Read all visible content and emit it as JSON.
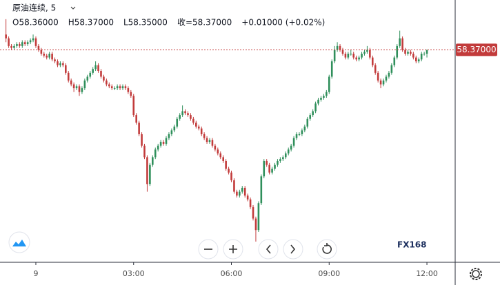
{
  "chart_data": {
    "type": "candlestick",
    "title": "原油连续, 5",
    "info": [
      "O58.36000",
      "H58.37000",
      "L58.35000",
      "收=58.37000",
      "+0.01000 (+0.02%)"
    ],
    "price_tag": "58.37000",
    "logo": "FX168",
    "up_color": "#2f8f5b",
    "down_color": "#c23b3b",
    "xlim": [
      -66,
      772
    ],
    "ylim": [
      57.816,
      58.5
    ],
    "xticks": [
      {
        "value": 0,
        "label": "9"
      },
      {
        "value": 180,
        "label": "03:00"
      },
      {
        "value": 360,
        "label": "06:00"
      },
      {
        "value": 540,
        "label": "09:00"
      },
      {
        "value": 720,
        "label": "12:00"
      }
    ],
    "x": [
      -55,
      -50,
      -45,
      -40,
      -35,
      -30,
      -25,
      -20,
      -15,
      -10,
      -5,
      0,
      5,
      10,
      15,
      20,
      25,
      30,
      35,
      40,
      45,
      50,
      55,
      60,
      65,
      70,
      75,
      80,
      85,
      90,
      95,
      100,
      105,
      110,
      115,
      120,
      125,
      130,
      135,
      140,
      145,
      150,
      155,
      160,
      165,
      170,
      175,
      180,
      185,
      190,
      195,
      200,
      205,
      210,
      215,
      220,
      225,
      230,
      235,
      240,
      245,
      250,
      255,
      260,
      265,
      270,
      275,
      280,
      285,
      290,
      295,
      300,
      305,
      310,
      315,
      320,
      325,
      330,
      335,
      340,
      345,
      350,
      355,
      360,
      365,
      370,
      375,
      380,
      385,
      390,
      395,
      400,
      405,
      410,
      415,
      420,
      425,
      430,
      435,
      440,
      445,
      450,
      455,
      460,
      465,
      470,
      475,
      480,
      485,
      490,
      495,
      500,
      505,
      510,
      515,
      520,
      525,
      530,
      535,
      540,
      545,
      550,
      555,
      560,
      565,
      570,
      575,
      580,
      585,
      590,
      595,
      600,
      605,
      610,
      615,
      620,
      625,
      630,
      635,
      640,
      645,
      650,
      655,
      660,
      665,
      670,
      675,
      680,
      685,
      690,
      695,
      700,
      705,
      710,
      715,
      720
    ],
    "open": [
      58.41,
      58.4,
      58.38,
      58.375,
      58.38,
      58.385,
      58.38,
      58.39,
      58.385,
      58.39,
      58.395,
      58.4,
      58.38,
      58.37,
      58.36,
      58.355,
      58.35,
      58.36,
      58.345,
      58.34,
      58.33,
      58.335,
      58.33,
      58.31,
      58.29,
      58.28,
      58.27,
      58.275,
      58.26,
      58.27,
      58.29,
      58.3,
      58.31,
      58.32,
      58.33,
      58.315,
      58.3,
      58.29,
      58.28,
      58.275,
      58.27,
      58.27,
      58.275,
      58.27,
      58.275,
      58.27,
      58.26,
      58.25,
      58.2,
      58.18,
      58.15,
      58.12,
      58.09,
      58.02,
      58.07,
      58.09,
      58.11,
      58.12,
      58.13,
      58.125,
      58.14,
      58.15,
      58.16,
      58.17,
      58.19,
      58.2,
      58.21,
      58.205,
      58.2,
      58.19,
      58.18,
      58.17,
      58.165,
      58.15,
      58.14,
      58.13,
      58.135,
      58.12,
      58.11,
      58.1,
      58.09,
      58.08,
      58.06,
      58.05,
      58.03,
      58.0,
      57.99,
      58.0,
      58.01,
      57.99,
      57.98,
      57.96,
      57.93,
      57.9,
      57.97,
      58.04,
      58.08,
      58.07,
      58.05,
      58.06,
      58.07,
      58.08,
      58.085,
      58.09,
      58.1,
      58.11,
      58.12,
      58.14,
      58.15,
      58.15,
      58.16,
      58.17,
      58.19,
      58.2,
      58.21,
      58.23,
      58.24,
      58.245,
      58.25,
      58.26,
      58.3,
      58.34,
      58.37,
      58.38,
      58.37,
      58.36,
      58.35,
      58.36,
      58.36,
      58.35,
      58.345,
      58.35,
      58.36,
      58.365,
      58.37,
      58.35,
      58.33,
      58.31,
      58.29,
      58.28,
      58.29,
      58.3,
      58.31,
      58.33,
      58.35,
      58.38,
      58.4,
      58.37,
      58.36,
      58.365,
      58.36,
      58.35,
      58.34,
      58.345,
      58.36,
      58.36
    ],
    "high": [
      58.45,
      58.405,
      58.385,
      58.385,
      58.39,
      58.39,
      58.395,
      58.395,
      58.395,
      58.4,
      58.41,
      58.405,
      58.385,
      58.375,
      58.365,
      58.36,
      58.365,
      58.365,
      58.35,
      58.345,
      58.34,
      58.34,
      58.335,
      58.315,
      58.295,
      58.285,
      58.28,
      58.28,
      58.275,
      58.295,
      58.305,
      58.315,
      58.325,
      58.34,
      58.335,
      58.32,
      58.305,
      58.295,
      58.285,
      58.28,
      58.275,
      58.28,
      58.28,
      58.28,
      58.28,
      58.275,
      58.265,
      58.255,
      58.205,
      58.185,
      58.155,
      58.125,
      58.095,
      58.075,
      58.095,
      58.115,
      58.125,
      58.135,
      58.135,
      58.145,
      58.155,
      58.165,
      58.175,
      58.195,
      58.205,
      58.225,
      58.215,
      58.21,
      58.205,
      58.195,
      58.185,
      58.175,
      58.17,
      58.155,
      58.145,
      58.14,
      58.14,
      58.125,
      58.115,
      58.105,
      58.095,
      58.085,
      58.065,
      58.055,
      58.035,
      58.005,
      58.005,
      58.015,
      58.015,
      57.995,
      57.985,
      57.965,
      57.935,
      57.975,
      58.045,
      58.085,
      58.085,
      58.075,
      58.065,
      58.075,
      58.085,
      58.09,
      58.095,
      58.105,
      58.115,
      58.125,
      58.145,
      58.155,
      58.155,
      58.165,
      58.175,
      58.195,
      58.205,
      58.215,
      58.235,
      58.245,
      58.25,
      58.255,
      58.265,
      58.305,
      58.345,
      58.38,
      58.39,
      58.385,
      58.375,
      58.365,
      58.365,
      58.37,
      58.365,
      58.355,
      58.355,
      58.365,
      58.37,
      58.38,
      58.375,
      58.355,
      58.335,
      58.315,
      58.295,
      58.295,
      58.305,
      58.315,
      58.335,
      58.355,
      58.385,
      58.42,
      58.405,
      58.375,
      58.37,
      58.37,
      58.365,
      58.355,
      58.35,
      58.365,
      58.365,
      58.37
    ],
    "low": [
      58.39,
      58.375,
      58.37,
      58.37,
      58.375,
      58.375,
      58.375,
      58.38,
      58.38,
      58.385,
      58.39,
      58.375,
      58.365,
      58.355,
      58.35,
      58.345,
      58.345,
      58.34,
      58.335,
      58.325,
      58.325,
      58.325,
      58.305,
      58.285,
      58.275,
      58.26,
      58.265,
      58.25,
      58.255,
      58.265,
      58.285,
      58.295,
      58.305,
      58.315,
      58.31,
      58.295,
      58.285,
      58.275,
      58.27,
      58.265,
      58.265,
      58.265,
      58.265,
      58.265,
      58.265,
      58.255,
      58.245,
      58.195,
      58.175,
      58.145,
      58.115,
      58.085,
      58.0,
      58.015,
      58.065,
      58.085,
      58.105,
      58.115,
      58.12,
      58.12,
      58.135,
      58.145,
      58.155,
      58.165,
      58.185,
      58.195,
      58.2,
      58.195,
      58.185,
      58.175,
      58.165,
      58.16,
      58.145,
      58.135,
      58.125,
      58.125,
      58.115,
      58.105,
      58.095,
      58.085,
      58.075,
      58.055,
      58.045,
      58.025,
      57.995,
      57.985,
      57.985,
      57.995,
      57.985,
      57.975,
      57.955,
      57.925,
      57.87,
      57.895,
      57.965,
      58.035,
      58.065,
      58.045,
      58.045,
      58.055,
      58.065,
      58.075,
      58.08,
      58.085,
      58.095,
      58.105,
      58.115,
      58.135,
      58.145,
      58.145,
      58.155,
      58.165,
      58.185,
      58.195,
      58.205,
      58.225,
      58.235,
      58.24,
      58.245,
      58.255,
      58.295,
      58.335,
      58.365,
      58.365,
      58.355,
      58.345,
      58.345,
      58.355,
      58.345,
      58.34,
      58.34,
      58.345,
      58.355,
      58.36,
      58.345,
      58.325,
      58.305,
      58.285,
      58.27,
      58.275,
      58.285,
      58.295,
      58.305,
      58.325,
      58.345,
      58.375,
      58.365,
      58.355,
      58.355,
      58.355,
      58.345,
      58.335,
      58.335,
      58.34,
      58.355,
      58.35
    ],
    "close": [
      58.4,
      58.38,
      58.375,
      58.38,
      58.385,
      58.38,
      58.39,
      58.385,
      58.39,
      58.395,
      58.4,
      58.38,
      58.37,
      58.36,
      58.355,
      58.35,
      58.36,
      58.345,
      58.34,
      58.33,
      58.335,
      58.33,
      58.31,
      58.29,
      58.28,
      58.27,
      58.275,
      58.26,
      58.27,
      58.29,
      58.3,
      58.31,
      58.32,
      58.33,
      58.315,
      58.3,
      58.29,
      58.28,
      58.275,
      58.27,
      58.27,
      58.275,
      58.27,
      58.275,
      58.27,
      58.26,
      58.25,
      58.2,
      58.18,
      58.15,
      58.12,
      58.09,
      58.02,
      58.07,
      58.09,
      58.11,
      58.12,
      58.13,
      58.125,
      58.14,
      58.15,
      58.16,
      58.17,
      58.19,
      58.2,
      58.21,
      58.205,
      58.2,
      58.19,
      58.18,
      58.17,
      58.165,
      58.15,
      58.14,
      58.13,
      58.135,
      58.12,
      58.11,
      58.1,
      58.09,
      58.08,
      58.06,
      58.05,
      58.03,
      58.0,
      57.99,
      58.0,
      58.01,
      57.99,
      57.98,
      57.96,
      57.93,
      57.9,
      57.97,
      58.04,
      58.08,
      58.07,
      58.05,
      58.06,
      58.07,
      58.08,
      58.085,
      58.09,
      58.1,
      58.11,
      58.12,
      58.14,
      58.15,
      58.15,
      58.16,
      58.17,
      58.19,
      58.2,
      58.21,
      58.23,
      58.24,
      58.245,
      58.25,
      58.26,
      58.3,
      58.34,
      58.37,
      58.38,
      58.37,
      58.36,
      58.35,
      58.36,
      58.36,
      58.35,
      58.345,
      58.35,
      58.36,
      58.365,
      58.37,
      58.35,
      58.33,
      58.31,
      58.29,
      58.28,
      58.29,
      58.3,
      58.31,
      58.33,
      58.35,
      58.38,
      58.4,
      58.37,
      58.36,
      58.365,
      58.36,
      58.35,
      58.34,
      58.345,
      58.36,
      58.36,
      58.37
    ]
  }
}
